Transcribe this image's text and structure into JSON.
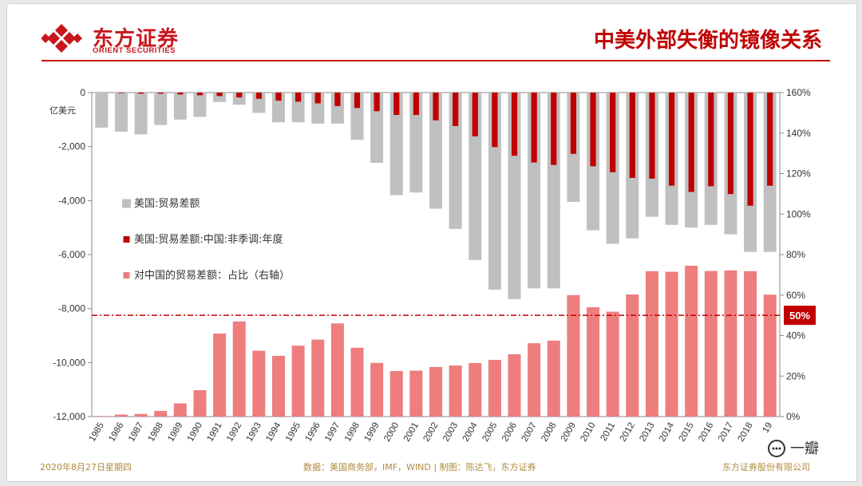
{
  "header": {
    "logo_cn": "东方证券",
    "logo_en": "ORIENT SECURITIES",
    "title": "中美外部失衡的镜像关系"
  },
  "footer": {
    "date": "2020年8月27日星期四",
    "source": "数据：美国商务部，IMF，WIND | 制图：陈达飞，东方证券",
    "company": "东方证券股份有限公司"
  },
  "watermark": {
    "text": "一瓣"
  },
  "colors": {
    "gray": "#c0c0c0",
    "dark_red": "#c00000",
    "pink": "#ee7d7e",
    "accent": "#c8161d"
  },
  "chart_data": {
    "type": "bar",
    "categories": [
      "1985",
      "1986",
      "1987",
      "1988",
      "1989",
      "1990",
      "1991",
      "1992",
      "1993",
      "1994",
      "1995",
      "1996",
      "1997",
      "1998",
      "1999",
      "2000",
      "2001",
      "2002",
      "2003",
      "2004",
      "2005",
      "2006",
      "2007",
      "2008",
      "2009",
      "2010",
      "2011",
      "2012",
      "2013",
      "2014",
      "2015",
      "2016",
      "2017",
      "2018",
      "2019"
    ],
    "category_display": [
      "1985",
      "1986",
      "1987",
      "1988",
      "1989",
      "1990",
      "1991",
      "1992",
      "1993",
      "1994",
      "1995",
      "1996",
      "1997",
      "1998",
      "1999",
      "2000",
      "2001",
      "2002",
      "2003",
      "2004",
      "2005",
      "2006",
      "2007",
      "2008",
      "2009",
      "2010",
      "2011",
      "2012",
      "2013",
      "2014",
      "2015",
      "2016",
      "2017",
      "2018",
      "19"
    ],
    "left_axis": {
      "unit_label": "亿美元",
      "ylim": [
        -12000,
        0
      ],
      "ticks": [
        "0",
        "-2,000",
        "-4,000",
        "-6,000",
        "-8,000",
        "-10,000",
        "-12,000"
      ]
    },
    "right_axis": {
      "ylim": [
        0,
        160
      ],
      "ticks": [
        "160%",
        "140%",
        "120%",
        "100%",
        "80%",
        "60%",
        "40%",
        "20%",
        "0%"
      ]
    },
    "series": [
      {
        "name": "美国:贸易差额",
        "axis": "left",
        "values": [
          -1300,
          -1450,
          -1550,
          -1200,
          -1000,
          -900,
          -350,
          -450,
          -750,
          -1100,
          -1100,
          -1150,
          -1150,
          -1750,
          -2600,
          -3800,
          -3700,
          -4300,
          -5050,
          -6200,
          -7300,
          -7650,
          -7250,
          -7250,
          -4050,
          -5100,
          -5600,
          -5400,
          -4600,
          -4900,
          -5000,
          -4900,
          -5250,
          -5900,
          -5900
        ]
      },
      {
        "name": "美国:贸易差额:中国:非季调:年度",
        "axis": "left",
        "values": [
          0,
          -20,
          -40,
          -40,
          -70,
          -100,
          -130,
          -180,
          -230,
          -300,
          -340,
          -400,
          -500,
          -570,
          -690,
          -830,
          -830,
          -1030,
          -1240,
          -1620,
          -2020,
          -2340,
          -2590,
          -2680,
          -2270,
          -2730,
          -2950,
          -3160,
          -3190,
          -3450,
          -3680,
          -3470,
          -3760,
          -4190,
          -3450
        ]
      },
      {
        "name": "对中国的贸易差额：占比（右轴）",
        "axis": "right",
        "values": [
          0.3,
          1,
          1.3,
          2.8,
          6.5,
          13,
          41,
          47,
          32.5,
          30,
          35,
          38,
          46,
          34,
          26.5,
          22.5,
          22.7,
          24.5,
          25.2,
          26.4,
          28,
          30.8,
          36.2,
          37.5,
          60,
          54,
          51.8,
          60.3,
          71.8,
          71.5,
          74.5,
          71.9,
          72.2,
          71.8,
          60.2
        ]
      }
    ],
    "reference_line": {
      "value": 50,
      "label": "50%",
      "axis": "right"
    }
  }
}
